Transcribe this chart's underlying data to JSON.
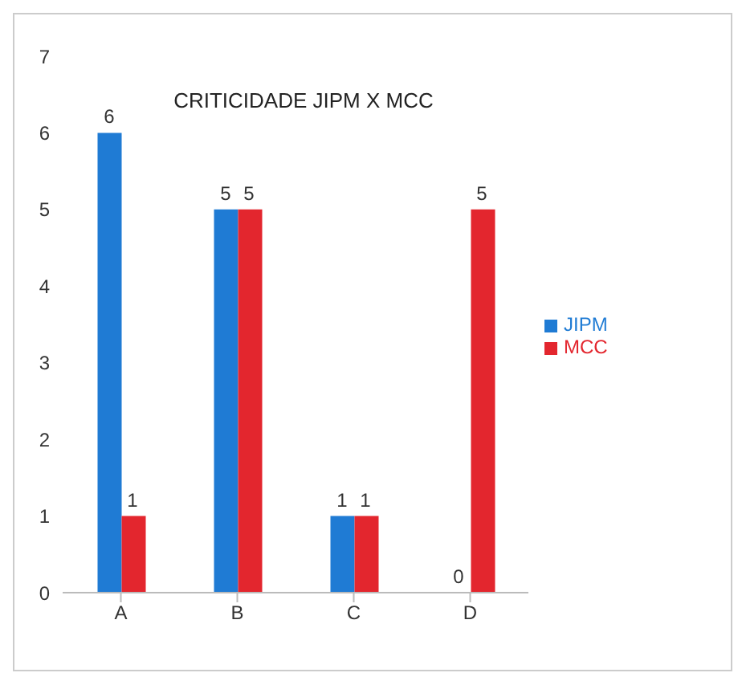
{
  "chart_data": {
    "type": "bar",
    "title": "CRITICIDADE JIPM X MCC",
    "categories": [
      "A",
      "B",
      "C",
      "D"
    ],
    "series": [
      {
        "name": "JIPM",
        "color": "#1f7bd4",
        "values": [
          6,
          5,
          1,
          0
        ]
      },
      {
        "name": "MCC",
        "color": "#e3262e",
        "values": [
          1,
          5,
          1,
          5
        ]
      }
    ],
    "ylim": [
      0,
      7
    ],
    "yticks": [
      0,
      1,
      2,
      3,
      4,
      5,
      6,
      7
    ],
    "grid": false,
    "legend": "right",
    "data_labels": true
  }
}
